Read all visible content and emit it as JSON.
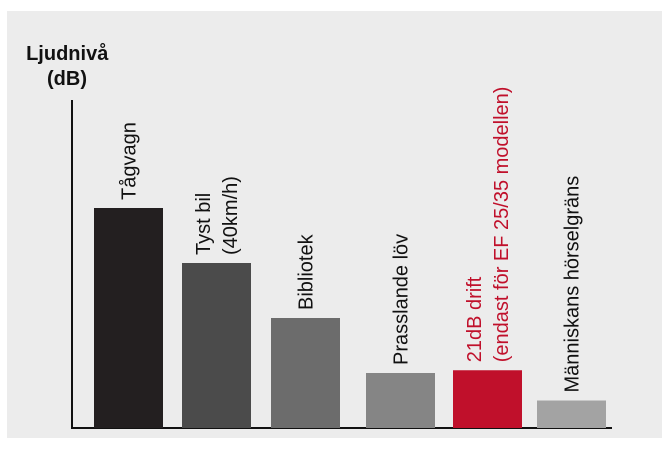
{
  "chart_data": {
    "type": "bar",
    "ylabel": [
      "Ljudnivå",
      "(dB)"
    ],
    "categories": [
      [
        "Tågvagn"
      ],
      [
        "Tyst bil",
        "(40km/h)"
      ],
      [
        "Bibliotek"
      ],
      [
        "Prasslande löv"
      ],
      [
        "21dB drift",
        "(endast för EF 25/35 modellen)"
      ],
      [
        "Människans hörselgräns"
      ]
    ],
    "values": [
      80,
      60,
      40,
      20,
      21,
      10
    ],
    "value_unit": "dB",
    "colors": [
      "#231f20",
      "#4b4b4b",
      "#6c6c6c",
      "#858585",
      "#c0102b",
      "#a3a3a3"
    ],
    "label_colors": [
      "#111111",
      "#111111",
      "#111111",
      "#111111",
      "#c0102b",
      "#111111"
    ],
    "grid": false,
    "legend": "none"
  }
}
